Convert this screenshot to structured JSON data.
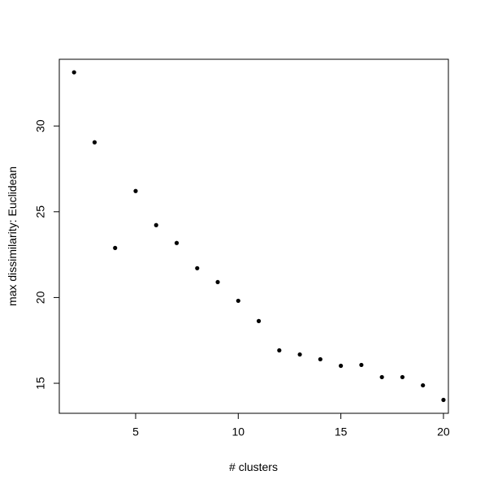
{
  "chart_data": {
    "type": "scatter",
    "x_label": "# clusters",
    "y_label": "max dissimilarity:  Euclidean",
    "x": [
      2,
      3,
      4,
      5,
      6,
      7,
      8,
      9,
      10,
      11,
      12,
      13,
      14,
      15,
      16,
      17,
      18,
      19,
      20
    ],
    "values": [
      33.13,
      29.05,
      22.89,
      26.21,
      24.22,
      23.18,
      21.71,
      20.9,
      19.81,
      18.63,
      16.92,
      16.68,
      16.4,
      16.02,
      16.07,
      15.36,
      15.36,
      14.88,
      14.03
    ],
    "color": "#000000",
    "xlim": [
      1.28,
      20.24
    ],
    "ylim": [
      13.25,
      33.89
    ],
    "xticks": [
      5,
      10,
      15,
      20
    ],
    "yticks": [
      15,
      20,
      25,
      30
    ]
  }
}
